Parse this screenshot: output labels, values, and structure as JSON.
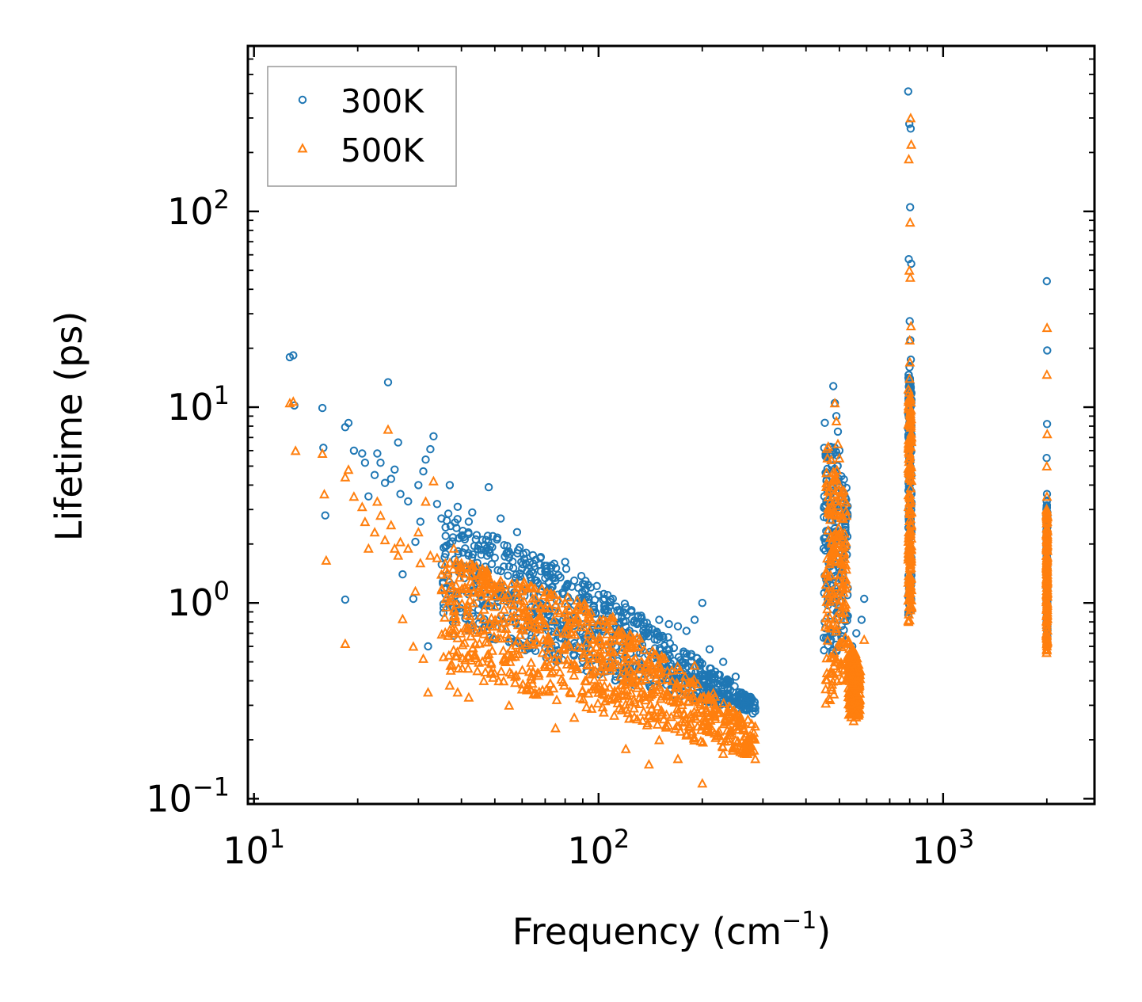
{
  "chart_data": {
    "type": "scatter",
    "xscale": "log",
    "yscale": "log",
    "xlabel": "Frequency (cm",
    "xlabel_sup": "−1",
    "xlabel_close": ")",
    "ylabel": "Lifetime (ps)",
    "xlim": [
      9.6,
      2750
    ],
    "ylim": [
      0.094,
      700
    ],
    "xticks": [
      {
        "base": "10",
        "exp": "1",
        "value": 10
      },
      {
        "base": "10",
        "exp": "2",
        "value": 100
      },
      {
        "base": "10",
        "exp": "3",
        "value": 1000
      }
    ],
    "yticks": [
      {
        "base": "10",
        "exp": "−1",
        "value": 0.1
      },
      {
        "base": "10",
        "exp": "0",
        "value": 1
      },
      {
        "base": "10",
        "exp": "1",
        "value": 10
      },
      {
        "base": "10",
        "exp": "2",
        "value": 100
      }
    ],
    "legend": {
      "position": "top-left",
      "entries": [
        "300K",
        "500K"
      ]
    },
    "colors": {
      "300K": "#1f77b4",
      "500K": "#ff7f0e"
    },
    "series": [
      {
        "name": "300K",
        "marker": "circle",
        "color": "#1f77b4",
        "points": [
          [
            12.7,
            18.0
          ],
          [
            13.0,
            18.4
          ],
          [
            13.1,
            10.2
          ],
          [
            15.8,
            9.9
          ],
          [
            15.9,
            6.2
          ],
          [
            16.1,
            2.8
          ],
          [
            18.4,
            7.9
          ],
          [
            18.8,
            8.3
          ],
          [
            18.4,
            1.04
          ],
          [
            19.5,
            6.0
          ],
          [
            20.6,
            5.8
          ],
          [
            21.0,
            5.2
          ],
          [
            21.5,
            3.5
          ],
          [
            22.4,
            4.5
          ],
          [
            22.8,
            5.8
          ],
          [
            23.3,
            5.2
          ],
          [
            24.0,
            4.1
          ],
          [
            24.5,
            13.4
          ],
          [
            25.0,
            4.3
          ],
          [
            25.6,
            4.8
          ],
          [
            26.2,
            6.6
          ],
          [
            26.6,
            3.6
          ],
          [
            27.0,
            1.4
          ],
          [
            28.0,
            3.3
          ],
          [
            29.0,
            1.05
          ],
          [
            29.4,
            2.05
          ],
          [
            30.0,
            4.0
          ],
          [
            30.4,
            2.6
          ],
          [
            31.0,
            4.7
          ],
          [
            31.5,
            5.4
          ],
          [
            32.0,
            0.6
          ],
          [
            32.5,
            6.1
          ],
          [
            33.2,
            7.1
          ],
          [
            34.0,
            3.2
          ],
          [
            35.0,
            2.7
          ],
          [
            36.0,
            2.2
          ],
          [
            37.0,
            4.0
          ],
          [
            38.0,
            0.68
          ],
          [
            39.0,
            3.1
          ],
          [
            40.0,
            2.2
          ],
          [
            41.0,
            1.9
          ],
          [
            42.0,
            2.6
          ],
          [
            43.0,
            2.9
          ],
          [
            44.5,
            1.6
          ],
          [
            46.0,
            2.1
          ],
          [
            48.0,
            3.9
          ],
          [
            50.0,
            1.7
          ],
          [
            52.0,
            2.7
          ],
          [
            55.0,
            1.7
          ],
          [
            58.0,
            2.3
          ],
          [
            60.0,
            1.5
          ],
          [
            63.0,
            1.4
          ],
          [
            66.0,
            1.3
          ],
          [
            70.0,
            1.45
          ],
          [
            75.0,
            1.3
          ],
          [
            80.0,
            1.62
          ],
          [
            85.0,
            1.3
          ],
          [
            90.0,
            1.25
          ],
          [
            95.0,
            1.2
          ],
          [
            100.0,
            1.1
          ],
          [
            110.0,
            1.05
          ],
          [
            115.0,
            0.92
          ],
          [
            120.0,
            0.95
          ],
          [
            130.0,
            0.85
          ],
          [
            140.0,
            0.75
          ],
          [
            150.0,
            0.82
          ],
          [
            160.0,
            0.78
          ],
          [
            170.0,
            0.76
          ],
          [
            180.0,
            0.72
          ],
          [
            190.0,
            0.82
          ],
          [
            200.0,
            1.0
          ],
          [
            210.0,
            0.58
          ],
          [
            230.0,
            0.5
          ],
          [
            250.0,
            0.42
          ],
          [
            270.0,
            0.33
          ],
          [
            285.0,
            0.29
          ],
          [
            480.0,
            12.8
          ],
          [
            485.0,
            10.5
          ],
          [
            490.0,
            9.0
          ],
          [
            495.0,
            7.5
          ],
          [
            500.0,
            6.0
          ],
          [
            510.0,
            4.0
          ],
          [
            520.0,
            2.5
          ],
          [
            560.0,
            0.7
          ],
          [
            580.0,
            0.82
          ],
          [
            590.0,
            1.05
          ],
          [
            540.0,
            0.5
          ],
          [
            545.0,
            0.6
          ],
          [
            792.0,
            410.0
          ],
          [
            798.0,
            280.0
          ],
          [
            805.0,
            265.0
          ],
          [
            802.0,
            105.0
          ],
          [
            795.0,
            57.0
          ],
          [
            808.0,
            54.0
          ],
          [
            800.0,
            27.5
          ],
          [
            803.0,
            22.0
          ],
          [
            806.0,
            17.5
          ],
          [
            799.0,
            16.0
          ],
          [
            801.0,
            14.0
          ],
          [
            797.0,
            12.0
          ],
          [
            2000.0,
            44.0
          ],
          [
            2005.0,
            19.5
          ],
          [
            2003.0,
            8.2
          ],
          [
            1998.0,
            5.5
          ],
          [
            2002.0,
            3.6
          ],
          [
            1999.0,
            3.3
          ]
        ],
        "clusters": [
          {
            "xmin": 35,
            "xmax": 100,
            "y_hi_at_xmin": 3.0,
            "y_hi_at_xmax": 1.25,
            "y_lo_at_xmin": 0.8,
            "y_lo_at_xmax": 0.42
          },
          {
            "xmin": 100,
            "xmax": 285,
            "y_hi_at_xmin": 1.25,
            "y_hi_at_xmax": 0.32,
            "y_lo_at_xmin": 0.42,
            "y_lo_at_xmax": 0.27
          },
          {
            "xmin": 450,
            "xmax": 530,
            "y_hi_at_xmin": 9.0,
            "y_hi_at_xmax": 4.0,
            "y_lo_at_xmin": 0.4,
            "y_lo_at_xmax": 0.7
          },
          {
            "xmin": 792,
            "xmax": 810,
            "y_hi_at_xmin": 16.0,
            "y_hi_at_xmax": 12.0,
            "y_lo_at_xmin": 0.85,
            "y_lo_at_xmax": 0.9
          },
          {
            "xmin": 1995,
            "xmax": 2008,
            "y_hi_at_xmin": 3.5,
            "y_hi_at_xmax": 3.0,
            "y_lo_at_xmin": 0.6,
            "y_lo_at_xmax": 0.65
          }
        ]
      },
      {
        "name": "500K",
        "marker": "triangle",
        "color": "#ff7f0e",
        "points": [
          [
            12.7,
            10.5
          ],
          [
            13.0,
            10.7
          ],
          [
            13.2,
            6.0
          ],
          [
            15.8,
            5.8
          ],
          [
            16.0,
            3.6
          ],
          [
            16.2,
            1.65
          ],
          [
            18.4,
            4.4
          ],
          [
            18.8,
            4.8
          ],
          [
            18.4,
            0.62
          ],
          [
            19.5,
            3.5
          ],
          [
            20.6,
            3.1
          ],
          [
            21.0,
            2.6
          ],
          [
            21.5,
            1.9
          ],
          [
            22.4,
            2.3
          ],
          [
            22.8,
            3.3
          ],
          [
            23.3,
            2.8
          ],
          [
            24.0,
            2.1
          ],
          [
            24.5,
            7.7
          ],
          [
            25.0,
            2.5
          ],
          [
            25.6,
            1.9
          ],
          [
            26.2,
            1.75
          ],
          [
            26.6,
            2.05
          ],
          [
            27.0,
            0.83
          ],
          [
            28.0,
            1.9
          ],
          [
            29.0,
            0.6
          ],
          [
            29.4,
            1.15
          ],
          [
            30.0,
            2.3
          ],
          [
            30.4,
            1.6
          ],
          [
            31.0,
            0.52
          ],
          [
            31.5,
            3.3
          ],
          [
            32.0,
            0.35
          ],
          [
            32.5,
            1.75
          ],
          [
            33.2,
            4.2
          ],
          [
            34.0,
            1.7
          ],
          [
            35.0,
            1.4
          ],
          [
            36.0,
            1.05
          ],
          [
            37.0,
            0.38
          ],
          [
            38.0,
            1.9
          ],
          [
            39.0,
            0.35
          ],
          [
            40.0,
            1.6
          ],
          [
            41.0,
            1.2
          ],
          [
            42.0,
            0.33
          ],
          [
            43.0,
            1.4
          ],
          [
            44.5,
            0.45
          ],
          [
            46.0,
            1.5
          ],
          [
            48.0,
            0.55
          ],
          [
            52.0,
            1.3
          ],
          [
            55.0,
            0.3
          ],
          [
            58.0,
            1.2
          ],
          [
            63.0,
            0.85
          ],
          [
            70.0,
            0.95
          ],
          [
            75.0,
            0.23
          ],
          [
            80.0,
            1.0
          ],
          [
            85.0,
            0.26
          ],
          [
            95.0,
            0.9
          ],
          [
            110.0,
            0.85
          ],
          [
            120.0,
            0.18
          ],
          [
            140.0,
            0.15
          ],
          [
            150.0,
            0.2
          ],
          [
            170.0,
            0.16
          ],
          [
            190.0,
            0.48
          ],
          [
            200.0,
            0.12
          ],
          [
            210.0,
            0.22
          ],
          [
            230.0,
            0.17
          ],
          [
            250.0,
            0.2
          ],
          [
            270.0,
            0.17
          ],
          [
            285.0,
            0.16
          ],
          [
            485.0,
            10.5
          ],
          [
            490.0,
            8.5
          ],
          [
            495.0,
            6.5
          ],
          [
            500.0,
            5.5
          ],
          [
            470.0,
            0.32
          ],
          [
            550.0,
            0.25
          ],
          [
            560.0,
            0.27
          ],
          [
            590.0,
            0.65
          ],
          [
            575.0,
            0.45
          ],
          [
            805.0,
            300.0
          ],
          [
            808.0,
            220.0
          ],
          [
            795.0,
            185.0
          ],
          [
            802.0,
            88.0
          ],
          [
            798.0,
            50.0
          ],
          [
            803.0,
            46.0
          ],
          [
            807.0,
            26.0
          ],
          [
            800.0,
            22.0
          ],
          [
            801.0,
            17.0
          ],
          [
            799.0,
            14.0
          ],
          [
            2003.0,
            25.5
          ],
          [
            2001.0,
            14.7
          ],
          [
            2005.0,
            7.3
          ],
          [
            2000.0,
            5.0
          ],
          [
            2002.0,
            3.5
          ]
        ],
        "clusters": [
          {
            "xmin": 35,
            "xmax": 100,
            "y_hi_at_xmin": 1.8,
            "y_hi_at_xmax": 0.95,
            "y_lo_at_xmin": 0.45,
            "y_lo_at_xmax": 0.28
          },
          {
            "xmin": 100,
            "xmax": 285,
            "y_hi_at_xmin": 0.95,
            "y_hi_at_xmax": 0.24,
            "y_lo_at_xmin": 0.28,
            "y_lo_at_xmax": 0.16
          },
          {
            "xmin": 455,
            "xmax": 525,
            "y_hi_at_xmin": 7.0,
            "y_hi_at_xmax": 3.5,
            "y_lo_at_xmin": 0.3,
            "y_lo_at_xmax": 0.4
          },
          {
            "xmin": 530,
            "xmax": 575,
            "y_hi_at_xmin": 0.65,
            "y_hi_at_xmax": 0.5,
            "y_lo_at_xmin": 0.26,
            "y_lo_at_xmax": 0.26
          },
          {
            "xmin": 792,
            "xmax": 810,
            "y_hi_at_xmin": 12.5,
            "y_hi_at_xmax": 11.0,
            "y_lo_at_xmin": 0.8,
            "y_lo_at_xmax": 0.8
          },
          {
            "xmin": 1995,
            "xmax": 2008,
            "y_hi_at_xmin": 3.2,
            "y_hi_at_xmax": 2.8,
            "y_lo_at_xmin": 0.55,
            "y_lo_at_xmax": 0.55
          }
        ]
      }
    ]
  }
}
